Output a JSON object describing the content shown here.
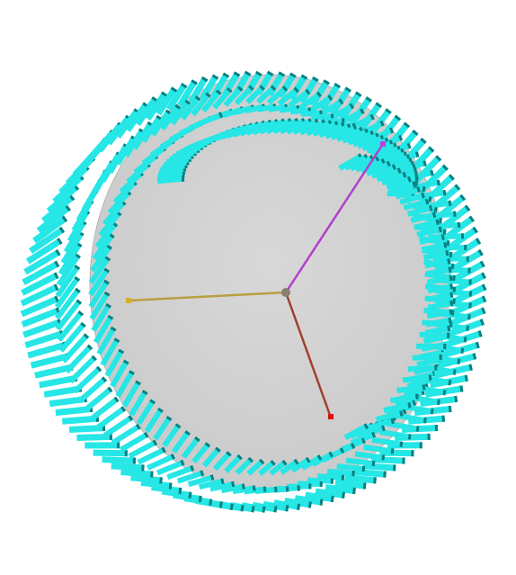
{
  "scene": {
    "background": "#ffffff",
    "sphere_color": "#c8c8c8",
    "dash_color": "#26e6e6",
    "dash_dark_color": "#0a7f7f",
    "origin_color": "#888070",
    "rings": [
      {
        "name": "outer-ring",
        "rx": 238,
        "ry": 238,
        "cx": 285,
        "cy": 326,
        "count": 150
      },
      {
        "name": "inner-ring",
        "rx": 170,
        "ry": 175,
        "cx": 330,
        "cy": 300,
        "count": 110
      }
    ],
    "axes": [
      {
        "name": "x-axis",
        "color": "#b8a040",
        "tip_color": "#d4b030",
        "tip": "west"
      },
      {
        "name": "y-axis",
        "color": "#b040d0",
        "tip_color": "#c040e0",
        "tip": "north-east"
      },
      {
        "name": "z-axis",
        "color": "#a04030",
        "tip_color": "#e01010",
        "tip": "south"
      }
    ]
  }
}
